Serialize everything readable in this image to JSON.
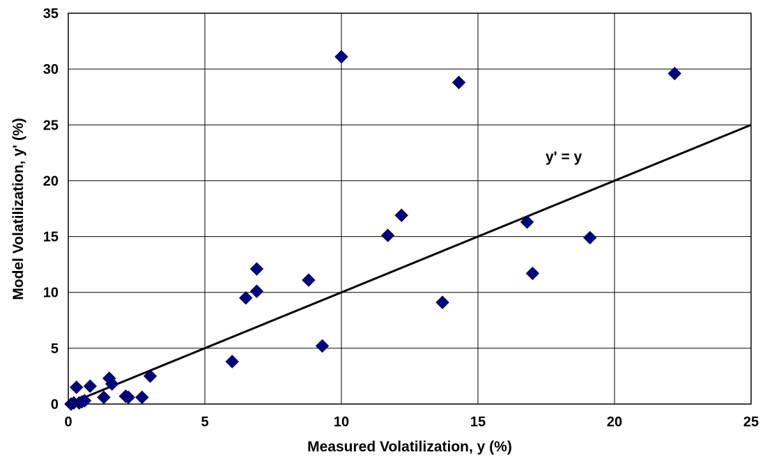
{
  "chart_data": {
    "type": "scatter",
    "title": "",
    "xlabel": "Measured Volatilization, y (%)",
    "ylabel": "Model Volatilization, y' (%)",
    "xlim": [
      0,
      25
    ],
    "ylim": [
      0,
      35
    ],
    "xticks": [
      "0",
      "5",
      "10",
      "15",
      "20",
      "25"
    ],
    "yticks": [
      "0",
      "5",
      "10",
      "15",
      "20",
      "25",
      "30",
      "35"
    ],
    "grid": true,
    "marker_color": "#000080",
    "line_color": "#000000",
    "series": [
      {
        "points": [
          [
            0.1,
            0.0
          ],
          [
            0.2,
            0.1
          ],
          [
            0.3,
            1.5
          ],
          [
            0.4,
            0.1
          ],
          [
            0.5,
            0.2
          ],
          [
            0.6,
            0.3
          ],
          [
            0.8,
            1.6
          ],
          [
            1.3,
            0.6
          ],
          [
            1.5,
            2.3
          ],
          [
            1.6,
            1.8
          ],
          [
            2.1,
            0.7
          ],
          [
            2.2,
            0.6
          ],
          [
            2.7,
            0.6
          ],
          [
            3.0,
            2.5
          ],
          [
            6.0,
            3.8
          ],
          [
            6.5,
            9.5
          ],
          [
            6.9,
            12.1
          ],
          [
            6.9,
            10.1
          ],
          [
            8.8,
            11.1
          ],
          [
            9.3,
            5.2
          ],
          [
            10.0,
            31.1
          ],
          [
            11.7,
            15.1
          ],
          [
            12.2,
            16.9
          ],
          [
            13.7,
            9.1
          ],
          [
            14.3,
            28.8
          ],
          [
            16.8,
            16.3
          ],
          [
            17.0,
            11.7
          ],
          [
            19.1,
            14.9
          ],
          [
            22.2,
            29.6
          ]
        ]
      }
    ],
    "reference_line": {
      "label": "y' = y",
      "x": [
        0,
        25
      ],
      "y": [
        0,
        25
      ]
    }
  }
}
